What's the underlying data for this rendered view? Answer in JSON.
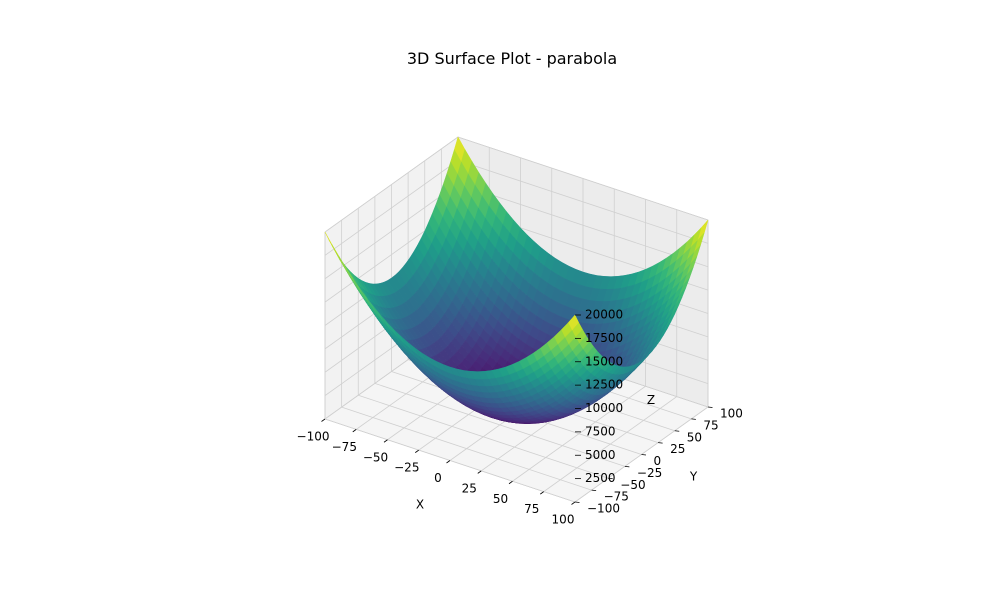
{
  "chart_data": {
    "type": "surface3d",
    "title": "3D Surface Plot - parabola",
    "function": "z = x^2 + y^2",
    "xlabel": "X",
    "ylabel": "Y",
    "zlabel": "Z",
    "x": {
      "min": -100,
      "max": 100,
      "ticks": [
        -100,
        -75,
        -50,
        -25,
        0,
        25,
        50,
        75,
        100
      ]
    },
    "y": {
      "min": -100,
      "max": 100,
      "ticks": [
        -100,
        -75,
        -50,
        -25,
        0,
        25,
        50,
        75,
        100
      ]
    },
    "z": {
      "min": 0,
      "max": 20000,
      "ticks": [
        2500,
        5000,
        7500,
        10000,
        12500,
        15000,
        17500,
        20000
      ]
    },
    "tick_text": {
      "x": [
        "−100",
        "−75",
        "−50",
        "−25",
        "0",
        "25",
        "50",
        "75",
        "100"
      ],
      "y": [
        "−100",
        "−75",
        "−50",
        "−25",
        "0",
        "25",
        "50",
        "75",
        "100"
      ],
      "z": [
        "2500",
        "5000",
        "7500",
        "10000",
        "12500",
        "15000",
        "17500",
        "20000"
      ]
    },
    "grid": true,
    "colormap": "viridis",
    "colors": {
      "pane_left": "#f2f2f2",
      "pane_back": "#ececec",
      "pane_floor": "#f5f5f5",
      "grid": "#d0d0d0",
      "edge": "#bdbdbd"
    }
  }
}
